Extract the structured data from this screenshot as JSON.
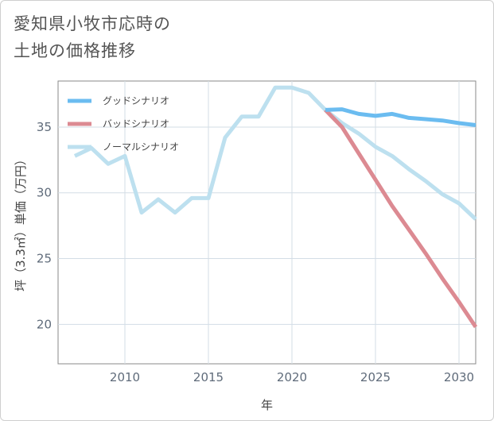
{
  "title_lines": [
    "愛知県小牧市応時の",
    "土地の価格推移"
  ],
  "chart_data": {
    "type": "line",
    "title": "愛知県小牧市応時の土地の価格推移",
    "xlabel": "年",
    "ylabel": "坪（3.3㎡）単価（万円）",
    "xlim": [
      2006,
      2031
    ],
    "ylim": [
      17,
      38.5
    ],
    "xticks": [
      2010,
      2015,
      2020,
      2025,
      2030
    ],
    "yticks": [
      20,
      25,
      30,
      35
    ],
    "grid": true,
    "legend_position": "top-left",
    "series": [
      {
        "name": "グッドシナリオ",
        "color": "#6bbcf0",
        "x": [
          2022,
          2023,
          2024,
          2025,
          2026,
          2027,
          2028,
          2029,
          2030,
          2031
        ],
        "y": [
          36.3,
          36.35,
          36.0,
          35.85,
          36.0,
          35.7,
          35.6,
          35.5,
          35.3,
          35.15
        ]
      },
      {
        "name": "バッドシナリオ",
        "color": "#dc8a92",
        "x": [
          2022,
          2023,
          2024,
          2025,
          2026,
          2027,
          2028,
          2029,
          2030,
          2031
        ],
        "y": [
          36.3,
          35.0,
          33.0,
          31.0,
          29.0,
          27.2,
          25.4,
          23.5,
          21.7,
          19.8
        ]
      },
      {
        "name": "ノーマルシナリオ",
        "color": "#bde0ef",
        "x": [
          2007,
          2008,
          2009,
          2010,
          2011,
          2012,
          2013,
          2014,
          2015,
          2016,
          2017,
          2018,
          2019,
          2020,
          2021,
          2022,
          2023,
          2024,
          2025,
          2026,
          2027,
          2028,
          2029,
          2030,
          2031
        ],
        "y": [
          32.8,
          33.4,
          32.2,
          32.8,
          28.5,
          29.5,
          28.5,
          29.6,
          29.6,
          34.2,
          35.8,
          35.8,
          38.0,
          38.0,
          37.6,
          36.3,
          35.3,
          34.5,
          33.5,
          32.8,
          31.8,
          30.9,
          29.9,
          29.2,
          28.0
        ]
      }
    ]
  }
}
